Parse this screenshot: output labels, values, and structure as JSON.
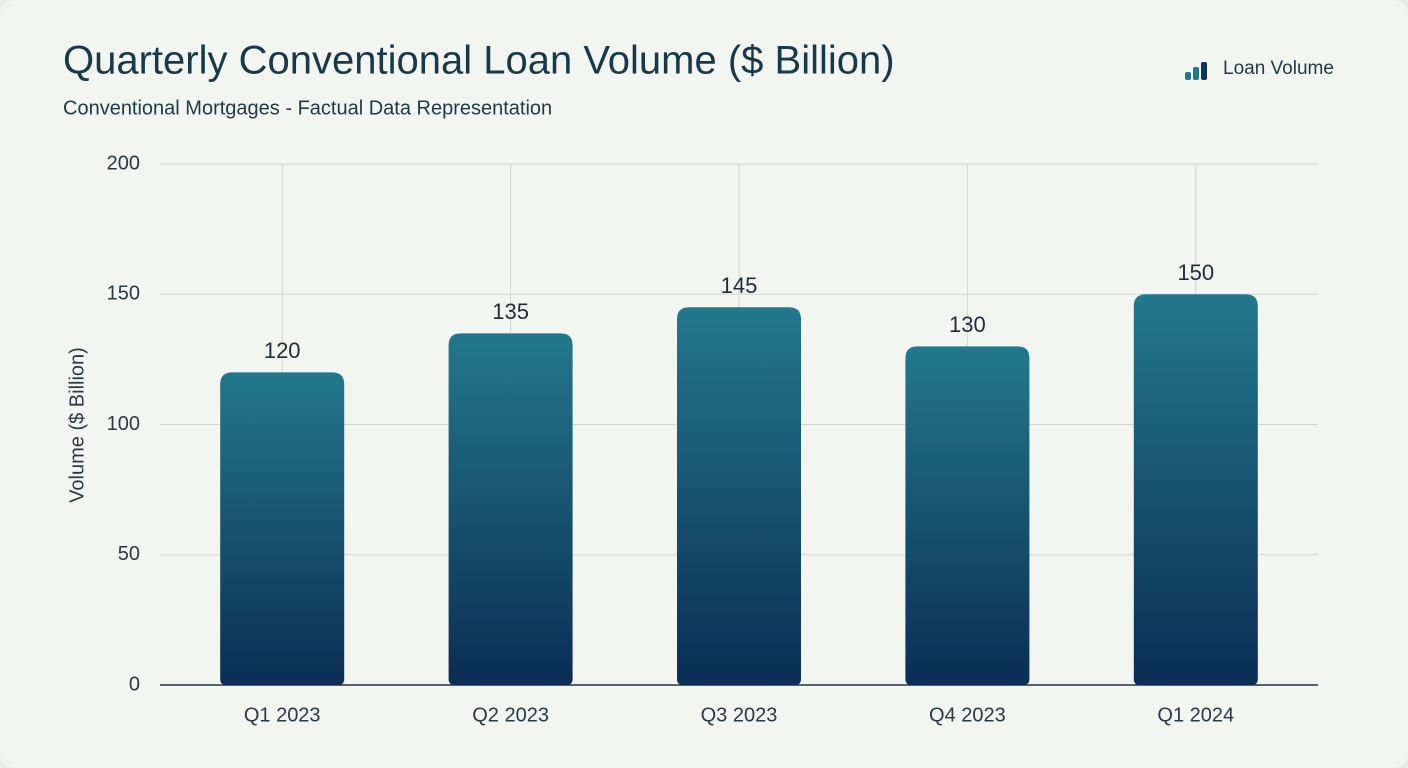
{
  "chart_data": {
    "type": "bar",
    "title": "Quarterly Conventional Loan Volume ($ Billion)",
    "subtitle": "Conventional Mortgages - Factual Data Representation",
    "y_label": "Volume ($ Billion)",
    "categories": [
      "Q1 2023",
      "Q2 2023",
      "Q3 2023",
      "Q4 2023",
      "Q1 2024"
    ],
    "series": [
      {
        "name": "Loan Volume",
        "color": "#23788c",
        "values": [
          120,
          135,
          145,
          130,
          150
        ]
      }
    ],
    "ylim": [
      0,
      200
    ],
    "yticks": [
      0,
      50,
      100,
      150,
      200
    ],
    "grid": true,
    "legend": "top-right"
  }
}
